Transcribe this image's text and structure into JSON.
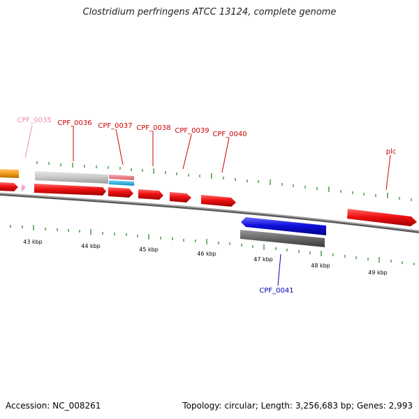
{
  "title": "Clostridium perfringens ATCC 13124, complete genome",
  "accession_line": "Accession: NC_008261",
  "meta_line": "Topology: circular; Length: 3,256,683 bp; Genes: 2,993",
  "colors": {
    "cds_forward": "#ee1111",
    "cds_reverse": "#1111dd",
    "label_forward": "#cc0000",
    "label_reverse": "#0000aa",
    "label_faint": "#ee88bb",
    "tick": "#2e8b2e",
    "backbone": "#808080",
    "orange_feature": "#f39a1a",
    "pink_feature": "#f5a0d0",
    "light_gray_feature": "#c8c8c8",
    "dark_gray_feature": "#666666",
    "salmon_feature": "#e87a80",
    "cyan_feature": "#20b8e8"
  },
  "scale": {
    "labels": [
      "43 kbp",
      "44 kbp",
      "45 kbp",
      "46 kbp",
      "47 kbp",
      "48 kbp",
      "49 kbp"
    ]
  },
  "gene_labels": [
    {
      "name": "CPF_0035",
      "style": "faint"
    },
    {
      "name": "CPF_0036",
      "style": "forward"
    },
    {
      "name": "CPF_0037",
      "style": "forward"
    },
    {
      "name": "CPF_0038",
      "style": "forward"
    },
    {
      "name": "CPF_0039",
      "style": "forward"
    },
    {
      "name": "CPF_0040",
      "style": "forward"
    },
    {
      "name": "plc",
      "style": "forward"
    },
    {
      "name": "CPF_0041",
      "style": "reverse"
    }
  ]
}
